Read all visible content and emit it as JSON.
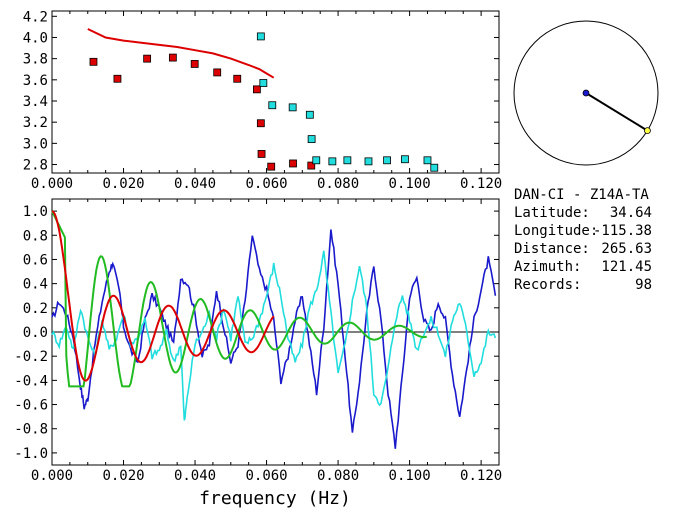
{
  "station": {
    "pair": "DAN-CI - Z14A-TA",
    "lat_label": "Latitude:",
    "lat_value": "34.64",
    "lon_label": "Longitude:",
    "lon_value": "-115.38",
    "dist_label": "Distance:",
    "dist_value": "265.63",
    "az_label": "Azimuth:",
    "az_value": "121.45",
    "rec_label": "Records:",
    "rec_value": "98"
  },
  "colors": {
    "red": "#dd0000",
    "cyan": "#22dddd",
    "blue": "#1a1acc",
    "green": "#22bb22",
    "black": "#000000",
    "yellow": "#ffff44"
  },
  "chart_data": [
    {
      "type": "scatter",
      "xlim": [
        0.0,
        0.125
      ],
      "ylim": [
        2.72,
        4.25
      ],
      "xticks": [
        "0.000",
        "0.020",
        "0.040",
        "0.060",
        "0.080",
        "0.100",
        "0.120"
      ],
      "yticks": [
        "2.8",
        "3.0",
        "3.2",
        "3.4",
        "3.6",
        "3.8",
        "4.0",
        "4.2"
      ],
      "series": [
        {
          "color": "red",
          "marker": "square",
          "x": [
            0.0116,
            0.0183,
            0.0266,
            0.0338,
            0.0399,
            0.0462,
            0.0518,
            0.0573,
            0.0584,
            0.0586,
            0.0613,
            0.0674,
            0.0725
          ],
          "y": [
            3.77,
            3.61,
            3.8,
            3.81,
            3.75,
            3.67,
            3.61,
            3.51,
            3.19,
            2.9,
            2.78,
            2.81,
            2.79
          ]
        },
        {
          "color": "cyan",
          "marker": "square",
          "x": [
            0.0584,
            0.0591,
            0.0616,
            0.0673,
            0.0721,
            0.0726,
            0.0739,
            0.0784,
            0.0826,
            0.0885,
            0.0937,
            0.0987,
            0.105,
            0.1069
          ],
          "y": [
            4.01,
            3.57,
            3.36,
            3.34,
            3.27,
            3.04,
            2.84,
            2.83,
            2.84,
            2.83,
            2.84,
            2.85,
            2.84,
            2.77
          ]
        },
        {
          "color": "red",
          "type": "line",
          "x": [
            0.01,
            0.015,
            0.02,
            0.025,
            0.03,
            0.035,
            0.04,
            0.045,
            0.05,
            0.055,
            0.058,
            0.06,
            0.062
          ],
          "y": [
            4.08,
            4.0,
            3.97,
            3.95,
            3.93,
            3.91,
            3.88,
            3.85,
            3.8,
            3.74,
            3.7,
            3.66,
            3.62
          ]
        }
      ]
    },
    {
      "type": "line",
      "xlim": [
        0.0,
        0.125
      ],
      "ylim": [
        -1.1,
        1.1
      ],
      "xlabel": "frequency (Hz)",
      "xticks": [
        "0.000",
        "0.020",
        "0.040",
        "0.060",
        "0.080",
        "0.100",
        "0.120"
      ],
      "yticks": [
        "1.0",
        "0.8",
        "0.6",
        "0.4",
        "0.2",
        "0.0",
        "-0.2",
        "-0.4",
        "-0.6",
        "-0.8",
        "-1.0"
      ],
      "series": [
        {
          "color": "blue",
          "x": [
            0.0,
            0.002,
            0.004,
            0.006,
            0.008,
            0.009,
            0.01,
            0.012,
            0.014,
            0.016,
            0.017,
            0.019,
            0.02,
            0.022,
            0.024,
            0.026,
            0.028,
            0.03,
            0.032,
            0.034,
            0.036,
            0.038,
            0.04,
            0.042,
            0.044,
            0.046,
            0.048,
            0.05,
            0.052,
            0.054,
            0.056,
            0.058,
            0.06,
            0.062,
            0.064,
            0.066,
            0.068,
            0.07,
            0.072,
            0.074,
            0.076,
            0.078,
            0.08,
            0.082,
            0.084,
            0.086,
            0.088,
            0.09,
            0.092,
            0.094,
            0.096,
            0.098,
            0.1,
            0.102,
            0.104,
            0.106,
            0.108,
            0.11,
            0.112,
            0.114,
            0.116,
            0.118,
            0.12,
            0.122,
            0.124
          ],
          "y": [
            0.1,
            0.25,
            0.15,
            -0.05,
            -0.45,
            -0.62,
            -0.55,
            -0.1,
            0.25,
            0.5,
            0.58,
            0.3,
            0.05,
            -0.15,
            -0.25,
            0.1,
            0.3,
            0.2,
            0.05,
            -0.1,
            0.45,
            0.4,
            0.15,
            -0.2,
            -0.1,
            0.35,
            0.05,
            -0.25,
            -0.1,
            0.25,
            0.8,
            0.5,
            0.35,
            0.1,
            -0.4,
            -0.2,
            0.1,
            0.3,
            -0.1,
            -0.5,
            0.05,
            0.85,
            0.4,
            -0.2,
            -0.85,
            -0.4,
            0.15,
            0.55,
            0.1,
            -0.5,
            -0.95,
            -0.35,
            0.3,
            0.45,
            0.1,
            0.0,
            0.25,
            0.1,
            -0.35,
            -0.7,
            -0.3,
            0.1,
            0.35,
            0.6,
            0.3
          ]
        },
        {
          "color": "cyan",
          "x": [
            0.0,
            0.002,
            0.004,
            0.006,
            0.008,
            0.01,
            0.012,
            0.014,
            0.016,
            0.018,
            0.02,
            0.022,
            0.024,
            0.026,
            0.028,
            0.03,
            0.032,
            0.034,
            0.036,
            0.037,
            0.038,
            0.04,
            0.042,
            0.044,
            0.046,
            0.048,
            0.05,
            0.052,
            0.054,
            0.056,
            0.058,
            0.06,
            0.062,
            0.064,
            0.066,
            0.068,
            0.07,
            0.072,
            0.074,
            0.076,
            0.078,
            0.08,
            0.082,
            0.084,
            0.086,
            0.088,
            0.09,
            0.092,
            0.094,
            0.096,
            0.098,
            0.1,
            0.102,
            0.104,
            0.106,
            0.108,
            0.11,
            0.112,
            0.114,
            0.116,
            0.118,
            0.12,
            0.122,
            0.124
          ],
          "y": [
            0.0,
            -0.1,
            0.05,
            -0.15,
            0.2,
            -0.05,
            -0.2,
            0.1,
            -0.15,
            -0.05,
            0.15,
            -0.1,
            -0.05,
            0.1,
            -0.2,
            -0.15,
            0.0,
            -0.25,
            -0.1,
            -0.75,
            -0.5,
            -0.1,
            0.0,
            0.15,
            -0.05,
            0.2,
            -0.05,
            0.3,
            -0.1,
            -0.05,
            0.1,
            0.3,
            0.55,
            0.3,
            -0.05,
            -0.25,
            -0.1,
            0.2,
            0.35,
            0.65,
            0.15,
            -0.35,
            -0.1,
            0.25,
            0.55,
            0.2,
            -0.5,
            -0.6,
            -0.3,
            0.1,
            0.3,
            0.1,
            -0.15,
            0.0,
            0.1,
            0.0,
            -0.2,
            0.1,
            0.25,
            0.0,
            -0.35,
            -0.25,
            0.0,
            -0.05
          ]
        },
        {
          "color": "green",
          "type": "line",
          "x_range": [
            0.0,
            0.105
          ],
          "model": "damped-cosine"
        },
        {
          "color": "red",
          "type": "line",
          "x_range": [
            0.0,
            0.062
          ],
          "model": "bessel-j0"
        }
      ],
      "zero_line": true
    }
  ],
  "azimuth_circle": {
    "azimuth_deg": 121.45
  }
}
